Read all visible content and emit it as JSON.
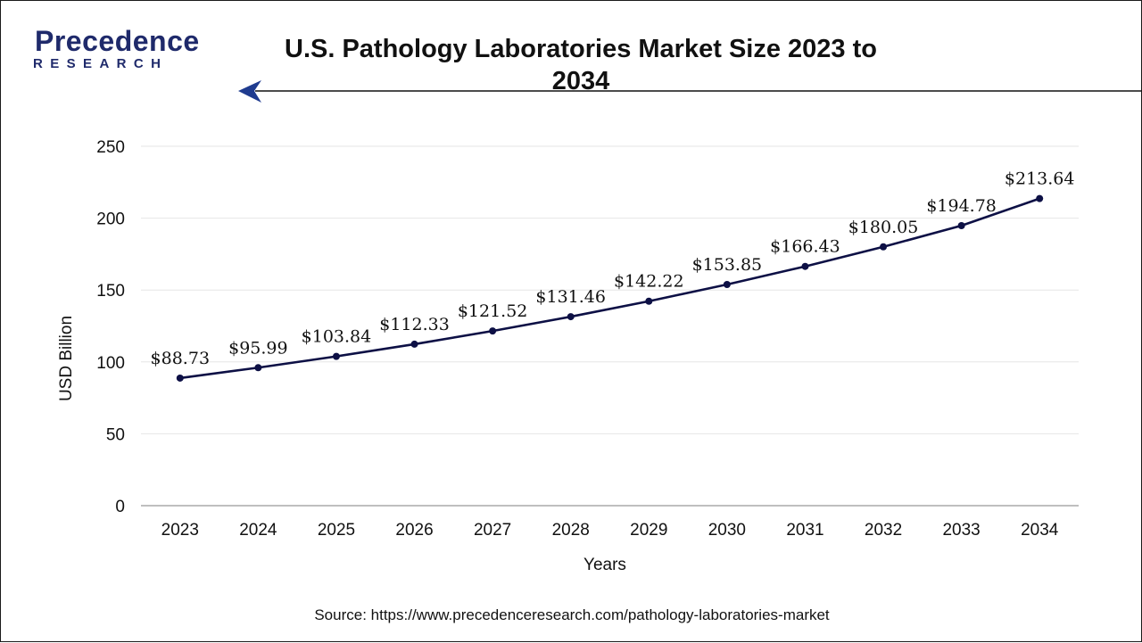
{
  "header": {
    "logo_name": "Precedence",
    "logo_sub": "RESEARCH",
    "title": "U.S. Pathology Laboratories Market Size 2023 to 2034"
  },
  "footer": {
    "source": "Source: https://www.precedenceresearch.com/pathology-laboratories-market"
  },
  "colors": {
    "line": "#0d1045",
    "brand": "#1f2a6b",
    "arrow": "#1f3b8f",
    "grid": "#e6e6e6"
  },
  "chart_data": {
    "type": "line",
    "title": "U.S. Pathology Laboratories Market Size 2023 to 2034",
    "xlabel": "Years",
    "ylabel": "USD Billion",
    "ylim": [
      0,
      250
    ],
    "yticks": [
      0,
      50,
      100,
      150,
      200,
      250
    ],
    "grid": true,
    "categories": [
      "2023",
      "2024",
      "2025",
      "2026",
      "2027",
      "2028",
      "2029",
      "2030",
      "2031",
      "2032",
      "2033",
      "2034"
    ],
    "series": [
      {
        "values": [
          88.73,
          95.99,
          103.84,
          112.33,
          121.52,
          131.46,
          142.22,
          153.85,
          166.43,
          180.05,
          194.78,
          213.64
        ],
        "labels": [
          "$88.73",
          "$95.99",
          "$103.84",
          "$112.33",
          "$121.52",
          "$131.46",
          "$142.22",
          "$153.85",
          "$166.43",
          "$180.05",
          "$194.78",
          "$213.64"
        ]
      }
    ]
  }
}
